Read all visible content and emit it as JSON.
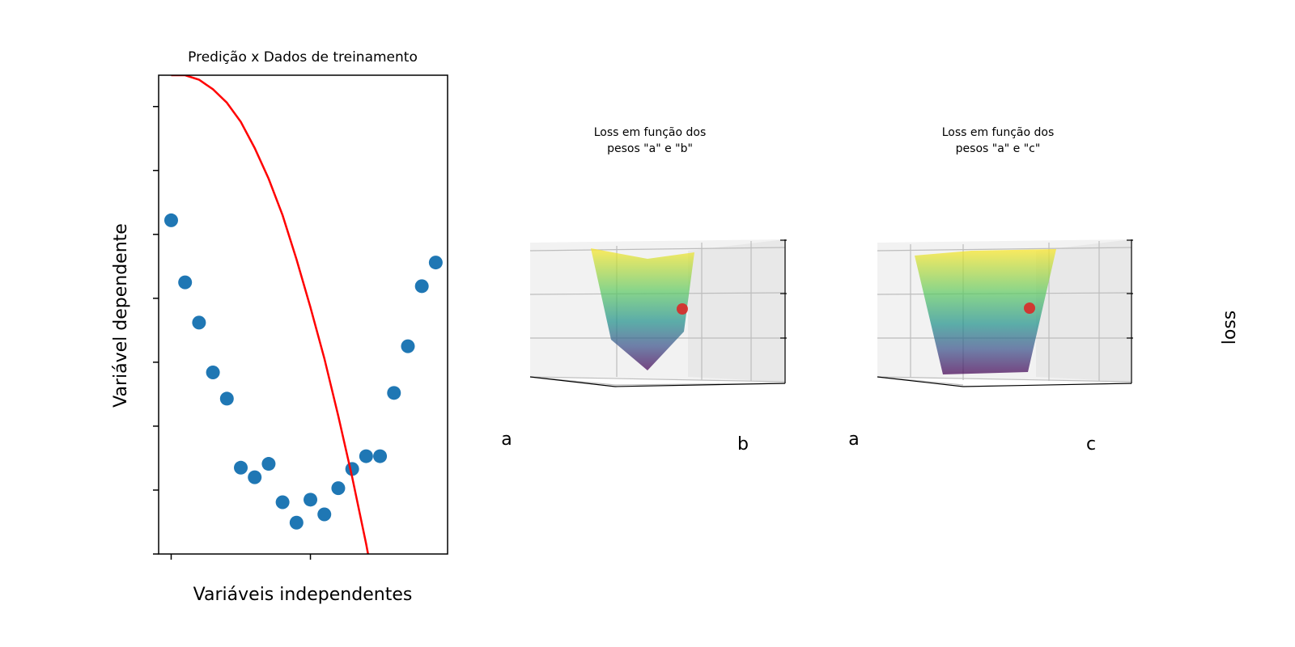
{
  "chart_data": [
    {
      "type": "scatter",
      "title": "Predição x Dados de treinamento",
      "xlabel": "Variáveis independentes",
      "ylabel": "Variável dependente",
      "x": [
        0,
        1,
        2,
        3,
        4,
        5,
        6,
        7,
        8,
        9,
        10,
        11,
        12,
        13,
        14,
        15,
        16,
        17,
        18,
        19
      ],
      "series": [
        {
          "type": "scatter",
          "color": "#1f77b4",
          "values": [
            5.22,
            4.25,
            3.62,
            2.84,
            2.43,
            1.35,
            1.2,
            1.41,
            0.81,
            0.49,
            0.85,
            0.62,
            1.03,
            1.33,
            1.53,
            1.53,
            2.52,
            3.25,
            4.19,
            4.56
          ]
        },
        {
          "type": "line",
          "color": "#ff0000",
          "x": [
            0,
            1,
            2,
            3,
            4,
            5,
            6,
            7,
            8,
            9,
            10,
            11,
            12,
            13,
            14,
            15
          ],
          "values": [
            7.49,
            7.49,
            7.42,
            7.27,
            7.06,
            6.76,
            6.35,
            5.87,
            5.3,
            4.61,
            3.86,
            3.06,
            2.16,
            1.2,
            0.16,
            -1.0
          ]
        }
      ],
      "xlim": [
        -0.9,
        19.85
      ],
      "xticks": [
        0,
        10
      ],
      "ylim": [
        0,
        7.49
      ],
      "yticks": [
        0,
        1,
        2,
        3,
        4,
        5,
        6,
        7
      ]
    },
    {
      "type": "surface3d",
      "title": [
        "Loss em função dos",
        "pesos \"a\" e \"b\""
      ],
      "xlabel": "a",
      "ylabel": "b"
    },
    {
      "type": "surface3d",
      "title": [
        "Loss em função dos",
        "pesos \"a\" e \"c\""
      ],
      "xlabel": "a",
      "ylabel": "c",
      "zlabel": "loss"
    }
  ]
}
